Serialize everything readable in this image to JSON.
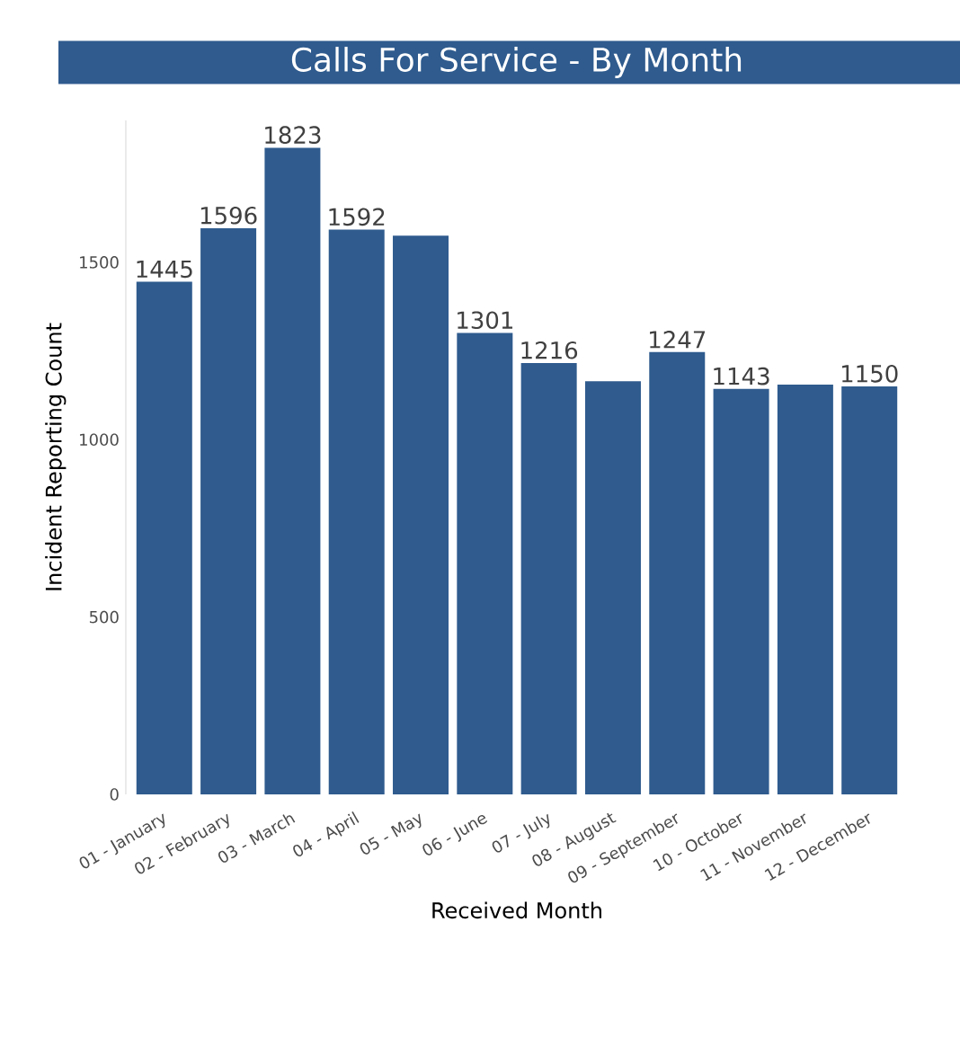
{
  "chart_data": {
    "type": "bar",
    "title": "Calls For Service - By Month",
    "xlabel": "Received Month",
    "ylabel": "Incident Reporting Count",
    "categories": [
      "01 - January",
      "02 - February",
      "03 - March",
      "04 - April",
      "05 - May",
      "06 - June",
      "07 - July",
      "08 - August",
      "09 - September",
      "10 - October",
      "11 - November",
      "12 - December"
    ],
    "values": [
      1445,
      1596,
      1823,
      1592,
      1575,
      1301,
      1216,
      1165,
      1247,
      1143,
      1155,
      1150
    ],
    "value_labels": [
      "1445",
      "1596",
      "1823",
      "1592",
      null,
      "1301",
      "1216",
      null,
      "1247",
      "1143",
      null,
      "1150"
    ],
    "color": "#2f5b8e",
    "ylim": [
      0,
      1900
    ],
    "yticks": [
      0,
      500,
      1000,
      1500
    ],
    "grid": false
  }
}
